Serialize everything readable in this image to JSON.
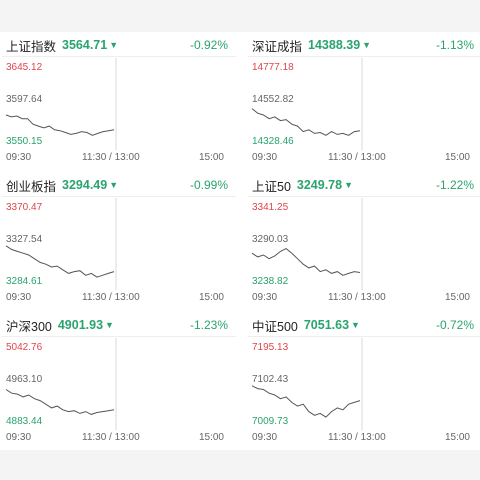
{
  "cards": [
    {
      "name": "上证指数",
      "price": "3564.71",
      "change": "-0.92%",
      "high": "3645.12",
      "mid": "3597.64",
      "low": "3550.15",
      "path": [
        0.62,
        0.64,
        0.63,
        0.66,
        0.66,
        0.72,
        0.74,
        0.76,
        0.74,
        0.78,
        0.79,
        0.81,
        0.83,
        0.82,
        0.8,
        0.81,
        0.84,
        0.82,
        0.8,
        0.79,
        0.78
      ]
    },
    {
      "name": "深证成指",
      "price": "14388.39",
      "change": "-1.13%",
      "high": "14777.18",
      "mid": "14552.82",
      "low": "14328.46",
      "path": [
        0.55,
        0.6,
        0.62,
        0.66,
        0.64,
        0.68,
        0.67,
        0.72,
        0.74,
        0.8,
        0.78,
        0.82,
        0.81,
        0.84,
        0.8,
        0.83,
        0.82,
        0.84,
        0.8,
        0.79
      ]
    },
    {
      "name": "创业板指",
      "price": "3294.49",
      "change": "-0.99%",
      "high": "3370.47",
      "mid": "3327.54",
      "low": "3284.61",
      "path": [
        0.52,
        0.56,
        0.58,
        0.6,
        0.62,
        0.66,
        0.7,
        0.72,
        0.75,
        0.74,
        0.78,
        0.82,
        0.8,
        0.79,
        0.84,
        0.82,
        0.86,
        0.84,
        0.82,
        0.8
      ]
    },
    {
      "name": "上证50",
      "price": "3249.78",
      "change": "-1.22%",
      "high": "3341.25",
      "mid": "3290.03",
      "low": "3238.82",
      "path": [
        0.6,
        0.64,
        0.62,
        0.66,
        0.63,
        0.58,
        0.55,
        0.6,
        0.66,
        0.72,
        0.76,
        0.74,
        0.8,
        0.78,
        0.82,
        0.8,
        0.84,
        0.82,
        0.8,
        0.81
      ]
    },
    {
      "name": "沪深300",
      "price": "4901.93",
      "change": "-1.23%",
      "high": "5042.76",
      "mid": "4963.10",
      "low": "4883.44",
      "path": [
        0.56,
        0.6,
        0.61,
        0.64,
        0.62,
        0.66,
        0.68,
        0.72,
        0.76,
        0.74,
        0.78,
        0.8,
        0.79,
        0.82,
        0.8,
        0.83,
        0.81,
        0.8,
        0.79,
        0.78
      ]
    },
    {
      "name": "中证500",
      "price": "7051.63",
      "change": "-0.72%",
      "high": "7195.13",
      "mid": "7102.43",
      "low": "7009.73",
      "path": [
        0.52,
        0.55,
        0.56,
        0.6,
        0.62,
        0.66,
        0.64,
        0.7,
        0.74,
        0.72,
        0.8,
        0.84,
        0.82,
        0.86,
        0.8,
        0.76,
        0.78,
        0.72,
        0.7,
        0.68
      ]
    }
  ],
  "times": {
    "start": "09:30",
    "mid": "11:30 / 13:00",
    "end": "15:00"
  }
}
